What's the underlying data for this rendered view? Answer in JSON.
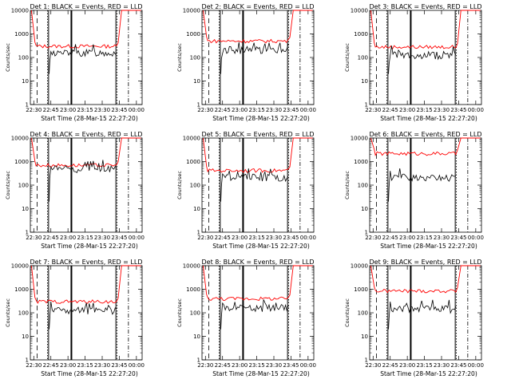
{
  "colors": {
    "events": "#000000",
    "lld": "#ff0000",
    "axis": "#000000",
    "background": "#ffffff"
  },
  "chart_data": [
    {
      "type": "line",
      "title": "Det 1: BLACK = Events, RED = LLD",
      "xlabel": "Start Time (28-Mar-15 22:27:20)",
      "ylabel": "Counts/sec",
      "xticks": [
        "22:30",
        "22:45",
        "23:00",
        "23:15",
        "23:30",
        "23:45",
        "00:00"
      ],
      "yticks": [
        "1",
        "10",
        "100",
        "1000",
        "10000"
      ],
      "ylim": [
        1,
        10000
      ],
      "yscale": "log",
      "series": [
        {
          "name": "Events",
          "color": "#000000",
          "level": 160,
          "start": "22:44"
        },
        {
          "name": "LLD",
          "color": "#ff0000",
          "level": 300,
          "high": 10000
        }
      ],
      "markers": {
        "dashed": "22:33",
        "dotted": [
          "22:42",
          "23:43"
        ],
        "solid": [
          "22:43",
          "23:03",
          "23:42"
        ],
        "dashdot": [
          "23:53"
        ]
      }
    },
    {
      "type": "line",
      "title": "Det 2: BLACK = Events, RED = LLD",
      "xlabel": "Start Time (28-Mar-15 22:27:20)",
      "ylabel": "Counts/sec",
      "xticks": [
        "22:30",
        "22:45",
        "23:00",
        "23:15",
        "23:30",
        "23:45",
        "00:00"
      ],
      "yticks": [
        "1",
        "10",
        "100",
        "1000",
        "10000"
      ],
      "ylim": [
        1,
        10000
      ],
      "yscale": "log",
      "series": [
        {
          "name": "Events",
          "color": "#000000",
          "level": 220,
          "start": "22:44"
        },
        {
          "name": "LLD",
          "color": "#ff0000",
          "level": 500,
          "high": 10000
        }
      ],
      "markers": {
        "dashed": "22:33",
        "dotted": [
          "22:42",
          "23:43"
        ],
        "solid": [
          "22:43",
          "23:03",
          "23:42"
        ],
        "dashdot": [
          "23:53"
        ]
      }
    },
    {
      "type": "line",
      "title": "Det 3: BLACK = Events, RED = LLD",
      "xlabel": "Start Time (28-Mar-15 22:27:20)",
      "ylabel": "Counts/sec",
      "xticks": [
        "22:30",
        "22:45",
        "23:00",
        "23:15",
        "23:30",
        "23:45",
        "00:00"
      ],
      "yticks": [
        "1",
        "10",
        "100",
        "1000",
        "10000"
      ],
      "ylim": [
        1,
        10000
      ],
      "yscale": "log",
      "series": [
        {
          "name": "Events",
          "color": "#000000",
          "level": 130,
          "start": "22:44"
        },
        {
          "name": "LLD",
          "color": "#ff0000",
          "level": 280,
          "high": 10000
        }
      ],
      "markers": {
        "dashed": "22:33",
        "dotted": [
          "22:42",
          "23:43"
        ],
        "solid": [
          "22:43",
          "23:03",
          "23:42"
        ],
        "dashdot": [
          "23:53"
        ]
      }
    },
    {
      "type": "line",
      "title": "Det 4: BLACK = Events, RED = LLD",
      "xlabel": "Start Time (28-Mar-15 22:27:20)",
      "ylabel": "Counts/sec",
      "xticks": [
        "22:30",
        "22:45",
        "23:00",
        "23:15",
        "23:30",
        "23:45",
        "00:00"
      ],
      "yticks": [
        "1",
        "10",
        "100",
        "1000",
        "10000"
      ],
      "ylim": [
        1,
        10000
      ],
      "yscale": "log",
      "series": [
        {
          "name": "Events",
          "color": "#000000",
          "level": 500,
          "start": "22:44"
        },
        {
          "name": "LLD",
          "color": "#ff0000",
          "level": 700,
          "high": 10000
        }
      ],
      "markers": {
        "dashed": "22:33",
        "dotted": [
          "22:42",
          "23:43"
        ],
        "solid": [
          "22:43",
          "23:03",
          "23:42"
        ],
        "dashdot": [
          "23:53"
        ]
      }
    },
    {
      "type": "line",
      "title": "Det 5: BLACK = Events, RED = LLD",
      "xlabel": "Start Time (28-Mar-15 22:27:20)",
      "ylabel": "Counts/sec",
      "xticks": [
        "22:30",
        "22:45",
        "23:00",
        "23:15",
        "23:30",
        "23:45",
        "00:00"
      ],
      "yticks": [
        "1",
        "10",
        "100",
        "1000",
        "10000"
      ],
      "ylim": [
        1,
        10000
      ],
      "yscale": "log",
      "series": [
        {
          "name": "Events",
          "color": "#000000",
          "level": 220,
          "start": "22:44"
        },
        {
          "name": "LLD",
          "color": "#ff0000",
          "level": 420,
          "high": 10000
        }
      ],
      "markers": {
        "dashed": "22:33",
        "dotted": [
          "22:42",
          "23:43"
        ],
        "solid": [
          "22:43",
          "23:03",
          "23:42"
        ],
        "dashdot": [
          "23:53"
        ]
      }
    },
    {
      "type": "line",
      "title": "Det 6: BLACK = Events, RED = LLD",
      "xlabel": "Start Time (28-Mar-15 22:27:20)",
      "ylabel": "Counts/sec",
      "xticks": [
        "22:30",
        "22:45",
        "23:00",
        "23:15",
        "23:30",
        "23:45",
        "00:00"
      ],
      "yticks": [
        "1",
        "10",
        "100",
        "1000",
        "10000"
      ],
      "ylim": [
        1,
        10000
      ],
      "yscale": "log",
      "series": [
        {
          "name": "Events",
          "color": "#000000",
          "level": 220,
          "start": "22:44"
        },
        {
          "name": "LLD",
          "color": "#ff0000",
          "level": 2200,
          "high": 10000
        }
      ],
      "markers": {
        "dashed": "22:33",
        "dotted": [
          "22:42",
          "23:43"
        ],
        "solid": [
          "22:43",
          "23:03",
          "23:42"
        ],
        "dashdot": [
          "23:53"
        ]
      }
    },
    {
      "type": "line",
      "title": "Det 7: BLACK = Events, RED = LLD",
      "xlabel": "Start Time (28-Mar-15 22:27:20)",
      "ylabel": "Counts/sec",
      "xticks": [
        "22:30",
        "22:45",
        "23:00",
        "23:15",
        "23:30",
        "23:45",
        "00:00"
      ],
      "yticks": [
        "1",
        "10",
        "100",
        "1000",
        "10000"
      ],
      "ylim": [
        1,
        10000
      ],
      "yscale": "log",
      "series": [
        {
          "name": "Events",
          "color": "#000000",
          "level": 130,
          "start": "22:44"
        },
        {
          "name": "LLD",
          "color": "#ff0000",
          "level": 300,
          "high": 10000
        }
      ],
      "markers": {
        "dashed": "22:33",
        "dotted": [
          "22:42",
          "23:43"
        ],
        "solid": [
          "22:43",
          "23:03",
          "23:42"
        ],
        "dashdot": [
          "23:53"
        ]
      }
    },
    {
      "type": "line",
      "title": "Det 8: BLACK = Events, RED = LLD",
      "xlabel": "Start Time (28-Mar-15 22:27:20)",
      "ylabel": "Counts/sec",
      "xticks": [
        "22:30",
        "22:45",
        "23:00",
        "23:15",
        "23:30",
        "23:45",
        "00:00"
      ],
      "yticks": [
        "1",
        "10",
        "100",
        "1000",
        "10000"
      ],
      "ylim": [
        1,
        10000
      ],
      "yscale": "log",
      "series": [
        {
          "name": "Events",
          "color": "#000000",
          "level": 170,
          "start": "22:44"
        },
        {
          "name": "LLD",
          "color": "#ff0000",
          "level": 400,
          "high": 10000
        }
      ],
      "markers": {
        "dashed": "22:33",
        "dotted": [
          "22:42",
          "23:43"
        ],
        "solid": [
          "22:43",
          "23:03",
          "23:42"
        ],
        "dashdot": [
          "23:53"
        ]
      }
    },
    {
      "type": "line",
      "title": "Det 9: BLACK = Events, RED = LLD",
      "xlabel": "Start Time (28-Mar-15 22:27:20)",
      "ylabel": "Counts/sec",
      "xticks": [
        "22:30",
        "22:45",
        "23:00",
        "23:15",
        "23:30",
        "23:45",
        "00:00"
      ],
      "yticks": [
        "1",
        "10",
        "100",
        "1000",
        "10000"
      ],
      "ylim": [
        1,
        10000
      ],
      "yscale": "log",
      "series": [
        {
          "name": "Events",
          "color": "#000000",
          "level": 150,
          "start": "22:44"
        },
        {
          "name": "LLD",
          "color": "#ff0000",
          "level": 850,
          "high": 10000
        }
      ],
      "markers": {
        "dashed": "22:33",
        "dotted": [
          "22:42",
          "23:43"
        ],
        "solid": [
          "22:43",
          "23:03",
          "23:42"
        ],
        "dashdot": [
          "23:53"
        ]
      }
    }
  ]
}
